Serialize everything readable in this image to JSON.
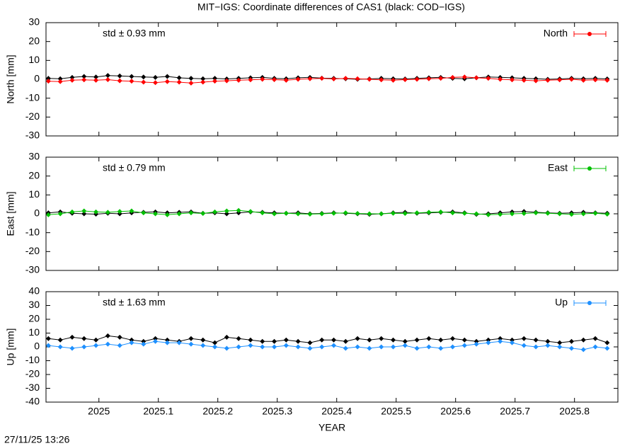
{
  "title": "MIT−IGS: Coordinate differences of CAS1 (black: COD−IGS)",
  "footer": "27/11/25 13:26",
  "chart_data": [
    {
      "type": "scatter",
      "ylabel": "North [mm]",
      "annotation": "std ± 0.93 mm",
      "xlim": [
        2024.911,
        2025.873
      ],
      "xticks": [
        2025,
        2025.1,
        2025.2,
        2025.3,
        2025.4,
        2025.5,
        2025.6,
        2025.7,
        2025.8
      ],
      "ylim": [
        -30,
        30
      ],
      "yticks": [
        -30,
        -20,
        -10,
        0,
        10,
        20,
        30
      ],
      "x": [
        2024.915,
        2024.935,
        2024.955,
        2024.975,
        2024.995,
        2025.015,
        2025.035,
        2025.055,
        2025.075,
        2025.095,
        2025.115,
        2025.135,
        2025.155,
        2025.175,
        2025.195,
        2025.215,
        2025.235,
        2025.255,
        2025.275,
        2025.295,
        2025.315,
        2025.335,
        2025.355,
        2025.375,
        2025.395,
        2025.415,
        2025.435,
        2025.455,
        2025.475,
        2025.495,
        2025.515,
        2025.535,
        2025.555,
        2025.575,
        2025.595,
        2025.615,
        2025.635,
        2025.655,
        2025.675,
        2025.695,
        2025.715,
        2025.735,
        2025.755,
        2025.775,
        2025.795,
        2025.815,
        2025.835,
        2025.855
      ],
      "series": [
        {
          "color": "#000000",
          "values": [
            0.5,
            0.3,
            1,
            1.5,
            1.2,
            2,
            1.8,
            1.5,
            1.2,
            1,
            1.5,
            0.8,
            0.5,
            0.3,
            0.5,
            0.2,
            0.5,
            0.8,
            1,
            0.5,
            0.3,
            0.8,
            1,
            0.6,
            0.5,
            0.3,
            0,
            0.2,
            0.5,
            0.3,
            0.2,
            0.5,
            0.8,
            1,
            0.5,
            0.3,
            0.8,
            1.2,
            1,
            0.8,
            0.5,
            0.3,
            0,
            0.2,
            0.5,
            0.3,
            0.5,
            0.2
          ]
        },
        {
          "name": "North",
          "color": "#ff0000",
          "values": [
            -1,
            -1.2,
            -0.5,
            -0.3,
            -0.5,
            -0.2,
            -0.8,
            -1,
            -1.5,
            -1.8,
            -1.2,
            -1.5,
            -2,
            -1.5,
            -1,
            -0.8,
            -0.5,
            -0.3,
            0,
            -0.2,
            -0.5,
            0,
            0.3,
            0.5,
            0.2,
            0.5,
            0.3,
            0,
            -0.3,
            -0.5,
            -0.2,
            0,
            0.3,
            0.5,
            1,
            1.2,
            0.8,
            0.5,
            0,
            -0.3,
            -0.5,
            -0.8,
            -0.5,
            -0.3,
            0,
            -0.5,
            -0.3,
            -0.5
          ]
        }
      ]
    },
    {
      "type": "scatter",
      "ylabel": "East [mm]",
      "annotation": "std ± 0.79 mm",
      "xlim": [
        2024.911,
        2025.873
      ],
      "xticks": [
        2025,
        2025.1,
        2025.2,
        2025.3,
        2025.4,
        2025.5,
        2025.6,
        2025.7,
        2025.8
      ],
      "ylim": [
        -30,
        30
      ],
      "yticks": [
        -30,
        -20,
        -10,
        0,
        10,
        20,
        30
      ],
      "x": [
        2024.915,
        2024.935,
        2024.955,
        2024.975,
        2024.995,
        2025.015,
        2025.035,
        2025.055,
        2025.075,
        2025.095,
        2025.115,
        2025.135,
        2025.155,
        2025.175,
        2025.195,
        2025.215,
        2025.235,
        2025.255,
        2025.275,
        2025.295,
        2025.315,
        2025.335,
        2025.355,
        2025.375,
        2025.395,
        2025.415,
        2025.435,
        2025.455,
        2025.475,
        2025.495,
        2025.515,
        2025.535,
        2025.555,
        2025.575,
        2025.595,
        2025.615,
        2025.635,
        2025.655,
        2025.675,
        2025.695,
        2025.715,
        2025.735,
        2025.755,
        2025.775,
        2025.795,
        2025.815,
        2025.835,
        2025.855
      ],
      "series": [
        {
          "color": "#000000",
          "values": [
            0.5,
            1,
            0.3,
            0,
            -0.2,
            0.3,
            0,
            0.5,
            0.8,
            1,
            0.5,
            0.8,
            1,
            0.3,
            0.5,
            0,
            0.5,
            1,
            0.8,
            0.5,
            0.3,
            0.5,
            0,
            0.2,
            0.5,
            0.3,
            0,
            -0.3,
            0,
            0.5,
            0.8,
            0.3,
            0.5,
            0.8,
            1,
            0.5,
            -0.3,
            0,
            0.5,
            1,
            1.2,
            0.8,
            0.5,
            0.3,
            0.5,
            0.8,
            0.5,
            0.3
          ]
        },
        {
          "name": "East",
          "color": "#00c000",
          "values": [
            -0.5,
            0,
            1,
            1.5,
            1,
            0.8,
            1.2,
            1.5,
            0.5,
            0,
            -0.5,
            0,
            0.5,
            0.2,
            1,
            1.5,
            1.8,
            1.2,
            0.5,
            0,
            0.3,
            0,
            -0.2,
            0,
            0.3,
            0.5,
            0.2,
            0,
            0,
            0.3,
            0.2,
            0.5,
            0.8,
            1,
            0.5,
            0.3,
            0,
            -0.5,
            -0.3,
            0,
            0.2,
            0.5,
            0.3,
            0,
            -0.3,
            0,
            0.3,
            -0.2
          ]
        }
      ]
    },
    {
      "type": "scatter",
      "ylabel": "Up [mm]",
      "annotation": "std ± 1.63 mm",
      "xlabel": "YEAR",
      "xlim": [
        2024.911,
        2025.873
      ],
      "xticks": [
        2025,
        2025.1,
        2025.2,
        2025.3,
        2025.4,
        2025.5,
        2025.6,
        2025.7,
        2025.8
      ],
      "ylim": [
        -40,
        40
      ],
      "yticks": [
        -40,
        -30,
        -20,
        -10,
        0,
        10,
        20,
        30,
        40
      ],
      "x": [
        2024.915,
        2024.935,
        2024.955,
        2024.975,
        2024.995,
        2025.015,
        2025.035,
        2025.055,
        2025.075,
        2025.095,
        2025.115,
        2025.135,
        2025.155,
        2025.175,
        2025.195,
        2025.215,
        2025.235,
        2025.255,
        2025.275,
        2025.295,
        2025.315,
        2025.335,
        2025.355,
        2025.375,
        2025.395,
        2025.415,
        2025.435,
        2025.455,
        2025.475,
        2025.495,
        2025.515,
        2025.535,
        2025.555,
        2025.575,
        2025.595,
        2025.615,
        2025.635,
        2025.655,
        2025.675,
        2025.695,
        2025.715,
        2025.735,
        2025.755,
        2025.775,
        2025.795,
        2025.815,
        2025.835,
        2025.855
      ],
      "series": [
        {
          "color": "#000000",
          "values": [
            6,
            5,
            7,
            6,
            5,
            8,
            7,
            5,
            4,
            6,
            5,
            4,
            6,
            5,
            3,
            7,
            6,
            5,
            4,
            4,
            5,
            4,
            3,
            5,
            5,
            4,
            6,
            5,
            6,
            5,
            4,
            5,
            6,
            5,
            6,
            5,
            4,
            5,
            6,
            5,
            6,
            5,
            4,
            3,
            4,
            5,
            6,
            3
          ]
        },
        {
          "name": "Up",
          "color": "#1e90ff",
          "values": [
            1,
            0,
            -1,
            0,
            1,
            2,
            1,
            3,
            2,
            4,
            3,
            3,
            2,
            1,
            0,
            -1,
            0,
            1,
            0,
            0,
            1,
            0,
            -1,
            0,
            1,
            -1,
            0,
            -1,
            0,
            0,
            1,
            -1,
            0,
            -1,
            0,
            1,
            2,
            3,
            4,
            3,
            1,
            0,
            1,
            0,
            -1,
            -2,
            0,
            -1
          ]
        }
      ]
    }
  ]
}
